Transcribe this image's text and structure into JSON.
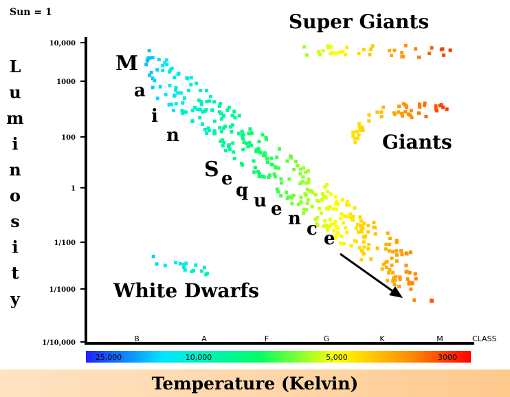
{
  "chart_data": {
    "type": "scatter",
    "title": "",
    "unit_label": "Sun = 1",
    "ylabel": "Luminosity",
    "xlabel": "Temperature  (Kelvin)",
    "y_scale": "log",
    "y_ticks": [
      {
        "value": 10000,
        "label": "10,000"
      },
      {
        "value": 1000,
        "label": "1000"
      },
      {
        "value": 100,
        "label": "100"
      },
      {
        "value": 1,
        "label": "1"
      },
      {
        "value": 0.01,
        "label": "1/100"
      },
      {
        "value": 0.001,
        "label": "1/1000"
      },
      {
        "value": 0.0001,
        "label": "1/10,000"
      }
    ],
    "class_axis": {
      "label": "CLASS",
      "classes": [
        "B",
        "A",
        "F",
        "G",
        "K",
        "M"
      ]
    },
    "temperature_ticks": [
      "25,000",
      "10,000",
      "5,000",
      "3000"
    ],
    "colorbar": [
      "#2020ff",
      "#00e6ff",
      "#00ff66",
      "#ffff00",
      "#ff8800",
      "#ff0000"
    ],
    "grid": false,
    "groups": [
      {
        "name": "Main Sequence",
        "label_letters": [
          "M",
          "a",
          "i",
          "n",
          "S",
          "e",
          "q",
          "u",
          "e",
          "n",
          "c",
          "e"
        ]
      },
      {
        "name": "Giants",
        "label": "Giants"
      },
      {
        "name": "Super Giants",
        "label": "Super Giants"
      },
      {
        "name": "White Dwarfs",
        "label": "White Dwarfs"
      }
    ]
  }
}
